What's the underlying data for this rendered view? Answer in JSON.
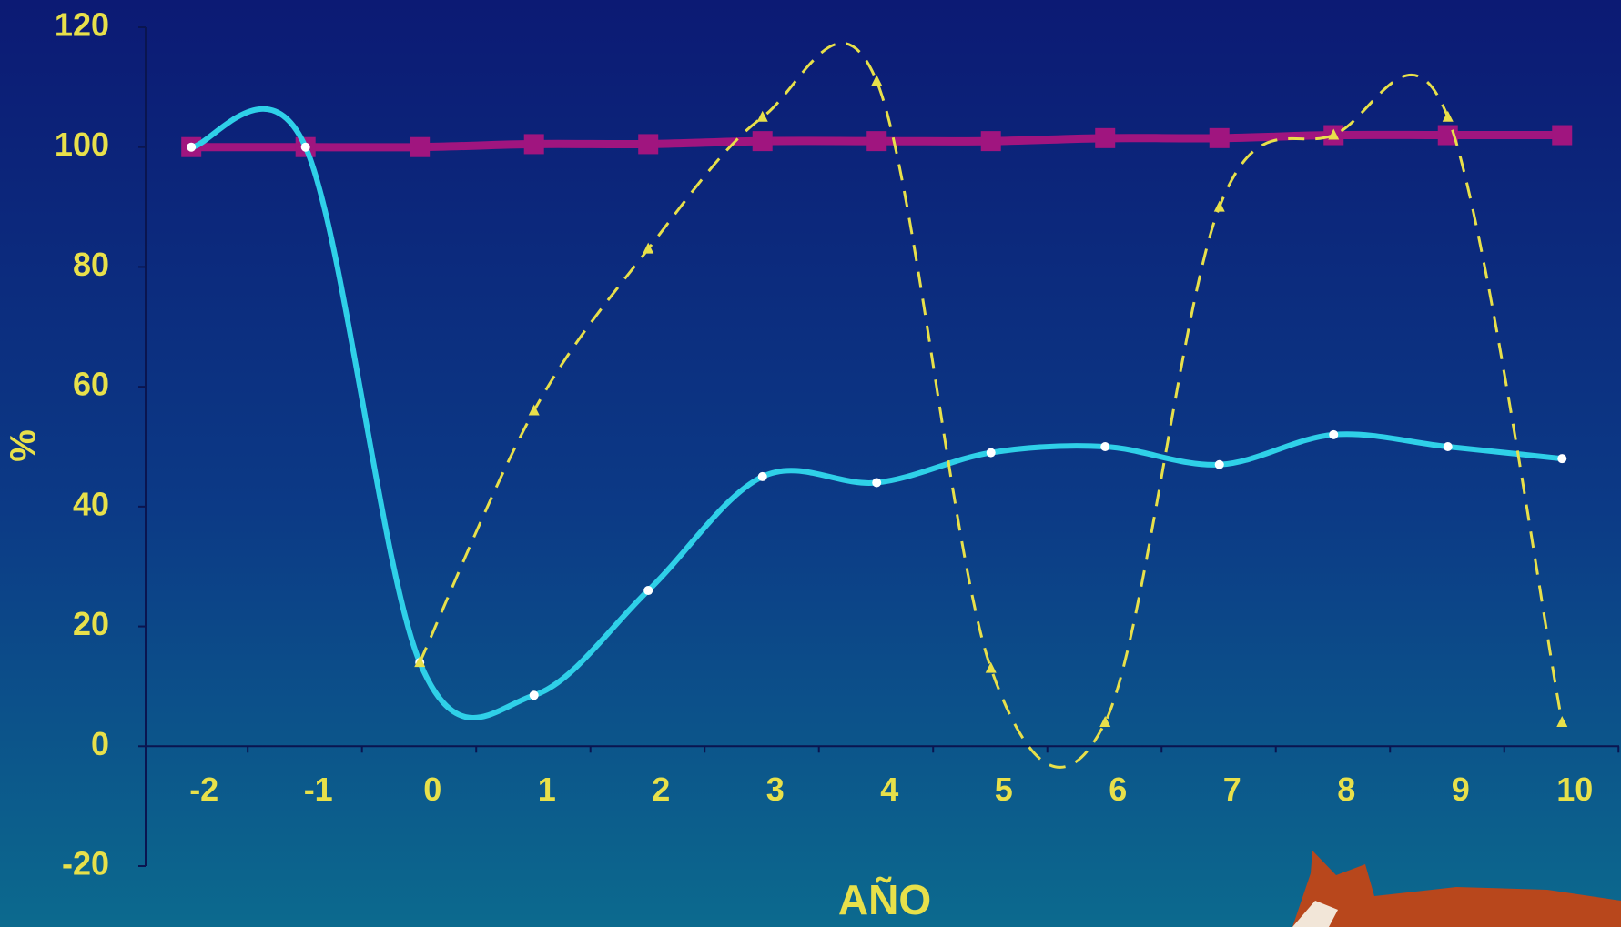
{
  "chart_data": {
    "type": "line",
    "x": [
      -2,
      -1,
      0,
      1,
      2,
      3,
      4,
      5,
      6,
      7,
      8,
      9,
      10
    ],
    "xlim": [
      -2.4,
      10.5
    ],
    "xticks": [
      -2,
      -1,
      0,
      1,
      2,
      3,
      4,
      5,
      6,
      7,
      8,
      9,
      10
    ],
    "ylim": [
      -20,
      120
    ],
    "yticks": [
      -20,
      0,
      20,
      40,
      60,
      80,
      100,
      120
    ],
    "xlabel": "AÑO",
    "ylabel": "%",
    "grid": false,
    "series": [
      {
        "color": "#a0157f",
        "marker": "square",
        "dashed": false,
        "values": [
          100,
          100,
          100,
          100.5,
          100.5,
          101,
          101,
          101,
          101.5,
          101.5,
          102,
          102,
          102
        ]
      },
      {
        "color": "#2fd0e8",
        "marker": "dot",
        "dashed": false,
        "values": [
          100,
          100,
          14,
          8.5,
          26,
          45,
          44,
          49,
          50,
          47,
          52,
          50,
          48
        ]
      },
      {
        "color": "#e8e04a",
        "marker": "triangle",
        "dashed": true,
        "values": [
          null,
          null,
          14,
          56,
          83,
          105,
          111,
          13,
          4,
          90,
          102,
          105,
          4
        ]
      }
    ]
  }
}
